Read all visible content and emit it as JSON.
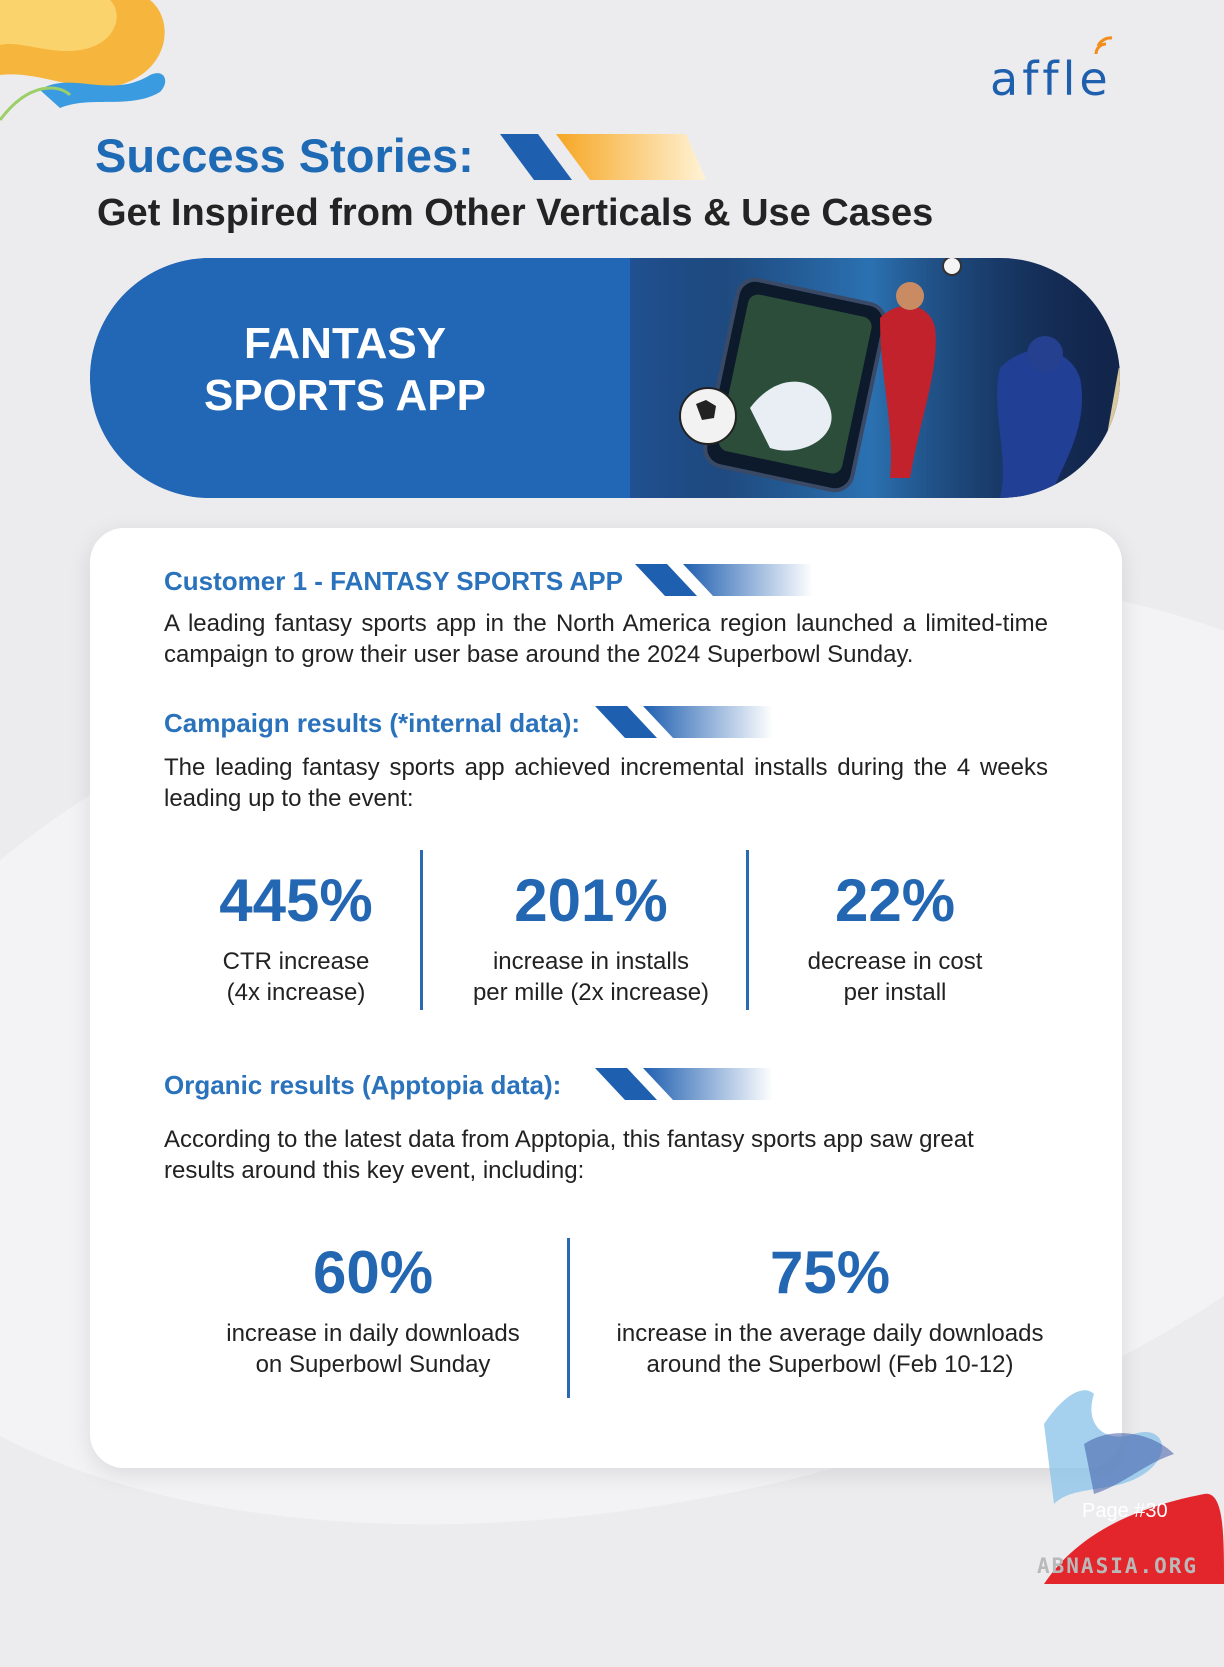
{
  "brand": {
    "logo_text": "affle"
  },
  "header": {
    "title": "Success Stories:",
    "subtitle": "Get Inspired from Other Verticals & Use Cases"
  },
  "hero": {
    "title": "FANTASY SPORTS APP"
  },
  "customer": {
    "heading": "Customer 1 - FANTASY SPORTS APP",
    "description": "A leading fantasy sports app in the North America region launched a limited-time campaign to grow their user base around the 2024 Superbowl Sunday."
  },
  "campaign": {
    "heading": "Campaign results (*internal data):",
    "description": "The leading fantasy sports app achieved incremental installs during the 4 weeks leading up to the event:",
    "stats": [
      {
        "value": "445%",
        "label_line1": "CTR increase",
        "label_line2": "(4x increase)"
      },
      {
        "value": "201%",
        "label_line1": "increase in installs",
        "label_line2": "per mille (2x increase)"
      },
      {
        "value": "22%",
        "label_line1": "decrease in cost",
        "label_line2": "per install"
      }
    ]
  },
  "organic": {
    "heading": "Organic results (Apptopia data):",
    "description": "According to the latest data from Apptopia, this fantasy sports app saw great results around this key event, including:",
    "stats": [
      {
        "value": "60%",
        "label_line1": "increase in daily downloads",
        "label_line2": "on Superbowl Sunday"
      },
      {
        "value": "75%",
        "label_line1": "increase in the average daily downloads",
        "label_line2": "around the Superbowl (Feb 10-12)"
      }
    ]
  },
  "footer": {
    "page_number": "Page #30",
    "watermark": "ABNASIA.ORG"
  },
  "colors": {
    "primary_blue": "#2366b2",
    "accent_orange": "#f6b53c",
    "accent_red": "#e3262b"
  }
}
